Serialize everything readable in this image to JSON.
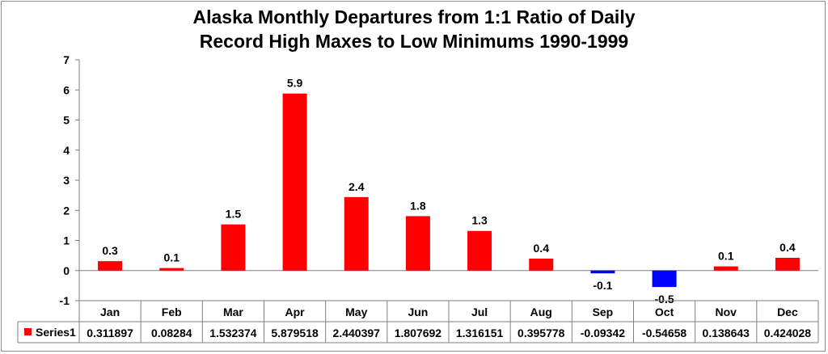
{
  "chart_data": {
    "type": "bar",
    "title_line1": "Alaska Monthly Departures from 1:1 Ratio of Daily",
    "title_line2": "Record High Maxes to Low Minimums 1990-1999",
    "categories": [
      "Jan",
      "Feb",
      "Mar",
      "Apr",
      "May",
      "Jun",
      "Jul",
      "Aug",
      "Sep",
      "Oct",
      "Nov",
      "Dec"
    ],
    "series": [
      {
        "name": "Series1",
        "values": [
          0.311897,
          0.08284,
          1.532374,
          5.879518,
          2.440397,
          1.807692,
          1.316151,
          0.395778,
          -0.09342,
          -0.54658,
          0.138643,
          0.424028
        ],
        "table_values": [
          "0.311897",
          "0.08284",
          "1.532374",
          "5.879518",
          "2.440397",
          "1.807692",
          "1.316151",
          "0.395778",
          "-0.09342",
          "-0.54658",
          "0.138643",
          "0.424028"
        ],
        "data_labels": [
          "0.3",
          "0.1",
          "1.5",
          "5.9",
          "2.4",
          "1.8",
          "1.3",
          "0.4",
          "-0.1",
          "-0.5",
          "0.1",
          "0.4"
        ]
      }
    ],
    "ylim": [
      -1,
      7
    ],
    "yticks": [
      "-1",
      "0",
      "1",
      "2",
      "3",
      "4",
      "5",
      "6",
      "7"
    ],
    "colors": {
      "positive": "#ff0000",
      "negative": "#0000ff",
      "axis": "#7f7f7f"
    },
    "legend": "data-table",
    "grid": false
  }
}
